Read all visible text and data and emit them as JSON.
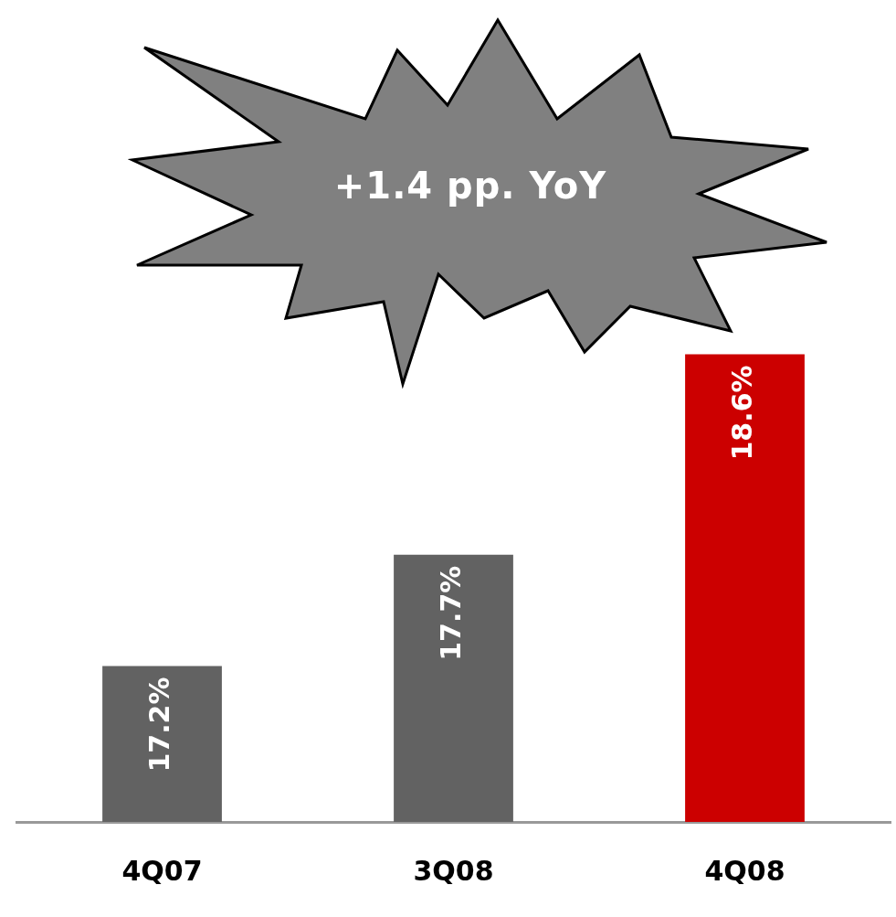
{
  "chart_data": {
    "type": "bar",
    "categories": [
      "4Q07",
      "3Q08",
      "4Q08"
    ],
    "values": [
      17.2,
      17.7,
      18.6
    ],
    "colors": [
      "#626262",
      "#626262",
      "#cc0000"
    ],
    "value_labels": [
      "17.2%",
      "17.7%",
      "18.6%"
    ],
    "annotations": [
      "+1.4 pp. YoY"
    ]
  }
}
